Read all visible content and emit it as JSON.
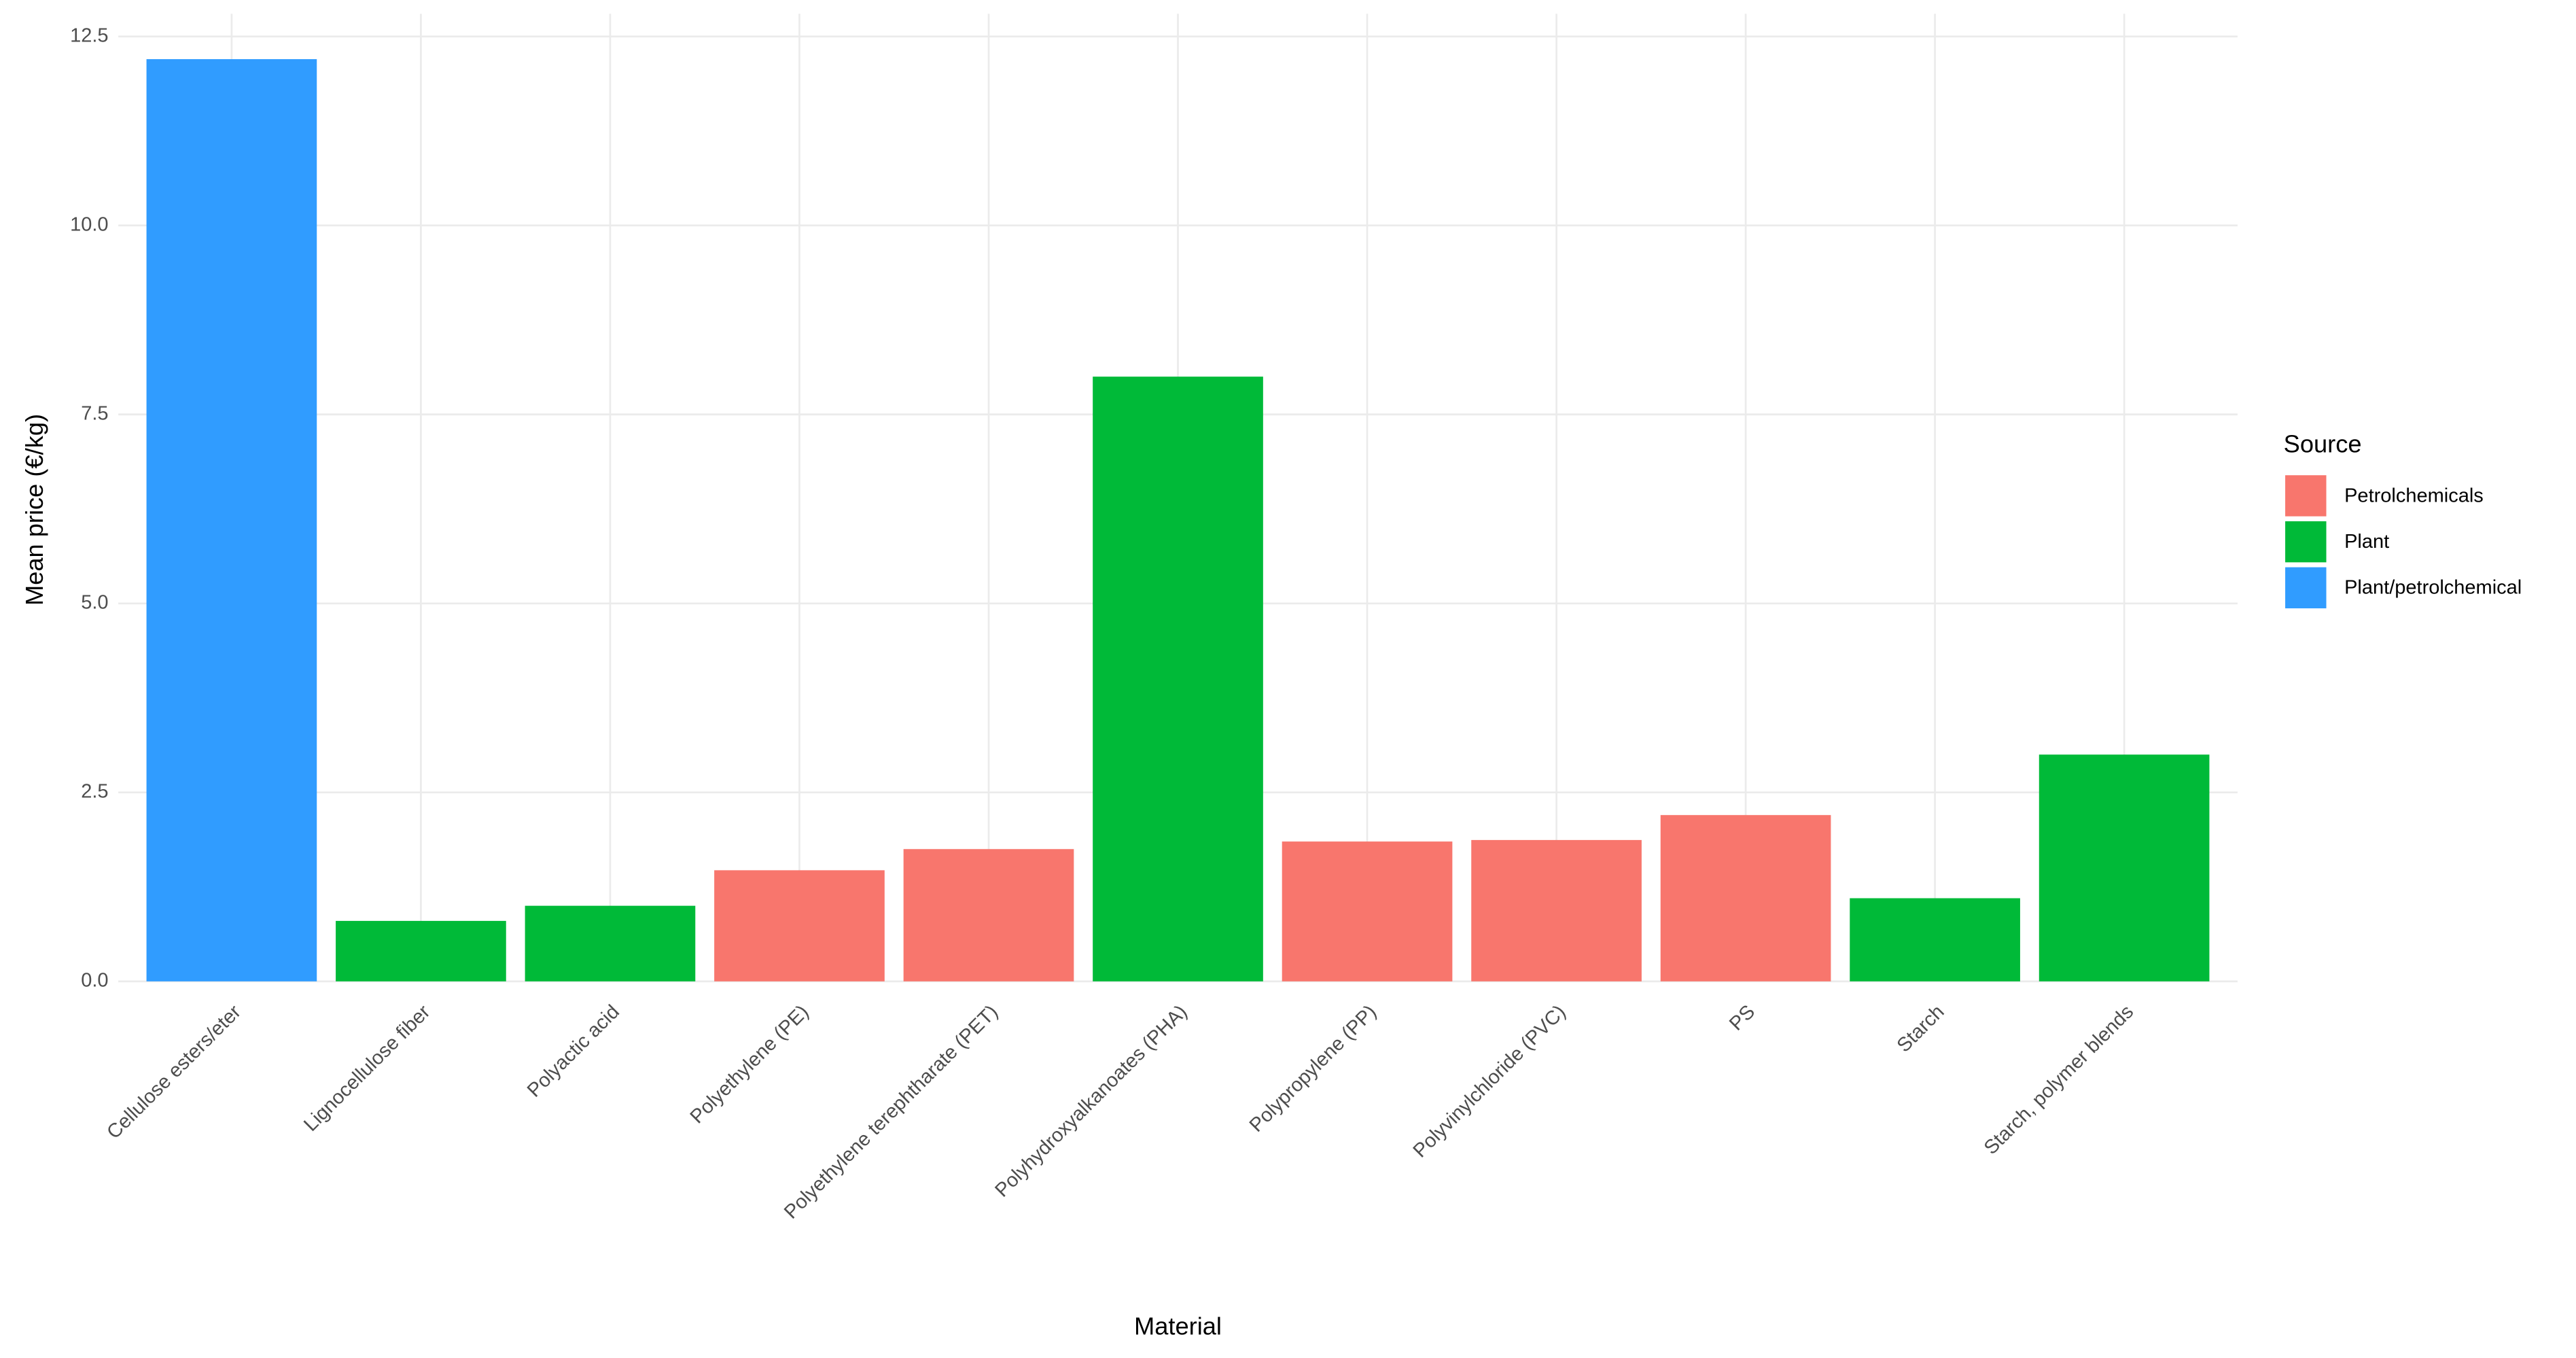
{
  "chart_data": {
    "type": "bar",
    "x_label": "Material",
    "y_label": "Mean price (€/kg)",
    "legend_title": "Source",
    "categories": [
      "Cellulose esters/eter",
      "Lignocellulose fiber",
      "Polyactic acid",
      "Polyethylene (PE)",
      "Polyethylene terephtharate (PET)",
      "Polyhydroxyalkanoates (PHA)",
      "Polypropylene (PP)",
      "Polyvinylchloride (PVC)",
      "PS",
      "Starch",
      "Starch, polymer blends"
    ],
    "series": [
      {
        "name": "Petrolchemicals",
        "color": "#f8766d",
        "values": [
          null,
          null,
          null,
          1.47,
          1.75,
          null,
          1.85,
          1.87,
          2.2,
          null,
          null
        ]
      },
      {
        "name": "Plant",
        "color": "#00ba38",
        "values": [
          null,
          0.8,
          1.0,
          null,
          null,
          8.0,
          null,
          null,
          null,
          1.1,
          3.0
        ]
      },
      {
        "name": "Plant/petrolchemical",
        "color": "#309cff",
        "values": [
          12.2,
          null,
          null,
          null,
          null,
          null,
          null,
          null,
          null,
          null,
          null
        ]
      }
    ],
    "ylim": [
      0,
      12.8
    ],
    "yticks": [
      {
        "value": 0,
        "label": "0.0"
      },
      2.5,
      {
        "value": 5,
        "label": "5.0"
      },
      7.5,
      {
        "value": 10,
        "label": "10.0"
      },
      12.5
    ],
    "grid": true
  }
}
